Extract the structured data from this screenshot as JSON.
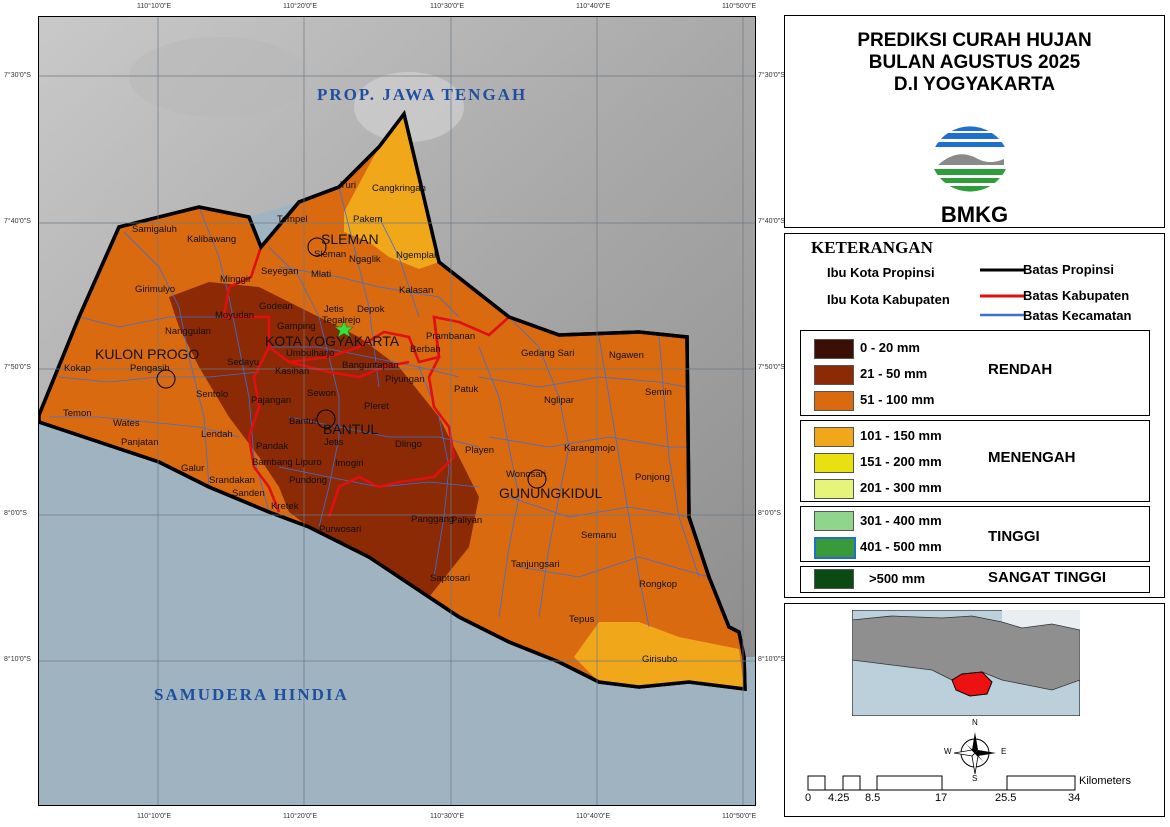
{
  "title": {
    "line1": "PREDIKSI CURAH HUJAN",
    "line2": "BULAN AGUSTUS 2025",
    "line3": "D.I YOGYAKARTA",
    "agency": "BMKG"
  },
  "map": {
    "ticks_top": [
      "110°10'0\"E",
      "110°20'0\"E",
      "110°30'0\"E",
      "110°40'0\"E",
      "110°50'0\"E"
    ],
    "ticks_bottom": [
      "110°10'0\"E",
      "110°20'0\"E",
      "110°30'0\"E",
      "110°40'0\"E",
      "110°50'0\"E"
    ],
    "ticks_left": [
      "7°30'0\"S",
      "7°40'0\"S",
      "7°50'0\"S",
      "8°0'0\"S",
      "8°10'0\"S"
    ],
    "ticks_right": [
      "7°30'0\"S",
      "7°40'0\"S",
      "7°50'0\"S",
      "8°0'0\"S",
      "8°10'0\"S"
    ],
    "sea_labels": {
      "north": "PROP. JAWA TENGAH",
      "south": "SAMUDERA HINDIA"
    },
    "kabupaten_labels": {
      "sleman": "SLEMAN",
      "kulon_progo": "KULON PROGO",
      "kota": "KOTA YOGYAKARTA",
      "bantul": "BANTUL",
      "gunungkidul": "GUNUNGKIDUL"
    },
    "kecamatan": {
      "turi": "Turi",
      "cangkringan": "Cangkringan",
      "pakem": "Pakem",
      "tempel": "Tempel",
      "samigaluh": "Samigaluh",
      "kalibawang": "Kalibawang",
      "sleman": "Sleman",
      "ngaglik": "Ngaglik",
      "ngemplak": "Ngemplak",
      "seyegan": "Seyegan",
      "mlati": "Mlati",
      "minggir": "Minggir",
      "girimulyo": "Girimulyo",
      "kalasan": "Kalasan",
      "depok": "Depok",
      "godean": "Godean",
      "moyudan": "Moyudan",
      "jetis": "Jetis",
      "tegalrejo": "Tegalrejo",
      "nanggulan": "Nanggulan",
      "gamping": "Gamping",
      "prambanan": "Prambanan",
      "berbah": "Berbah",
      "umbulharjo": "Umbulharjo",
      "gedangsari": "Gedang Sari",
      "ngawen": "Ngawen",
      "sedayu": "Sedayu",
      "banguntapan": "Banguntapan",
      "kokap": "Kokap",
      "pengasih": "Pengasih",
      "kasihan": "Kasihan",
      "piyungan": "Piyungan",
      "patuk": "Patuk",
      "semin": "Semin",
      "sentolo": "Sentolo",
      "sewon": "Sewon",
      "pajangan": "Pajangan",
      "pleret": "Pleret",
      "nglipar": "Nglipar",
      "temon": "Temon",
      "wates": "Wates",
      "bantul": "Bantul",
      "lendah": "Lendah",
      "panjatan": "Panjatan",
      "pandak": "Pandak",
      "dlingo": "Dlingo",
      "playen": "Playen",
      "karangmojo": "Karangmojo",
      "bambanglipuro": "Bambang Lipuro",
      "imogiri": "Imogiri",
      "jetis2": "Jetis",
      "galur": "Galur",
      "wonosari": "Wonosari",
      "ponjong": "Ponjong",
      "srandakan": "Srandakan",
      "pundong": "Pundong",
      "sanden": "Sanden",
      "kretek": "Kretek",
      "panggang": "Panggang",
      "paliyan": "Paliyan",
      "purwosari": "Purwosari",
      "semanu": "Semanu",
      "tanjungsari": "Tanjungsari",
      "saptosari": "Saptosari",
      "rongkop": "Rongkop",
      "tepus": "Tepus",
      "girisubo": "Girisubo"
    }
  },
  "legend": {
    "title": "KETERANGAN",
    "ibukota_propinsi": "Ibu Kota Propinsi",
    "ibukota_kabupaten": "Ibu Kota Kabupaten",
    "batas_propinsi": "Batas Propinsi",
    "batas_kabupaten": "Batas Kabupaten",
    "batas_kecamatan": "Batas Kecamatan",
    "classes": [
      {
        "label": "0 - 20 mm",
        "color": "#3b0f06"
      },
      {
        "label": "21 - 50 mm",
        "color": "#8b2a05"
      },
      {
        "label": "51 - 100 mm",
        "color": "#d96a10"
      },
      {
        "label": "101 - 150 mm",
        "color": "#f0a81a"
      },
      {
        "label": "151 - 200 mm",
        "color": "#e8e010"
      },
      {
        "label": "201 - 300 mm",
        "color": "#e6f47a"
      },
      {
        "label": "301 - 400 mm",
        "color": "#8fd68c"
      },
      {
        "label": "401 - 500 mm",
        "color": "#3a9a3a"
      },
      {
        "label": ">500 mm",
        "color": "#0b4a12"
      }
    ],
    "categories": {
      "rendah": "RENDAH",
      "menengah": "MENENGAH",
      "tinggi": "TINGGI",
      "sangat_tinggi": "SANGAT TINGGI"
    }
  },
  "inset": {
    "compass": {
      "n": "N",
      "s": "S",
      "e": "E",
      "w": "W"
    },
    "scale_unit": "Kilometers",
    "scale_ticks": [
      "0",
      "4.25",
      "8.5",
      "17",
      "25.5",
      "34"
    ]
  }
}
